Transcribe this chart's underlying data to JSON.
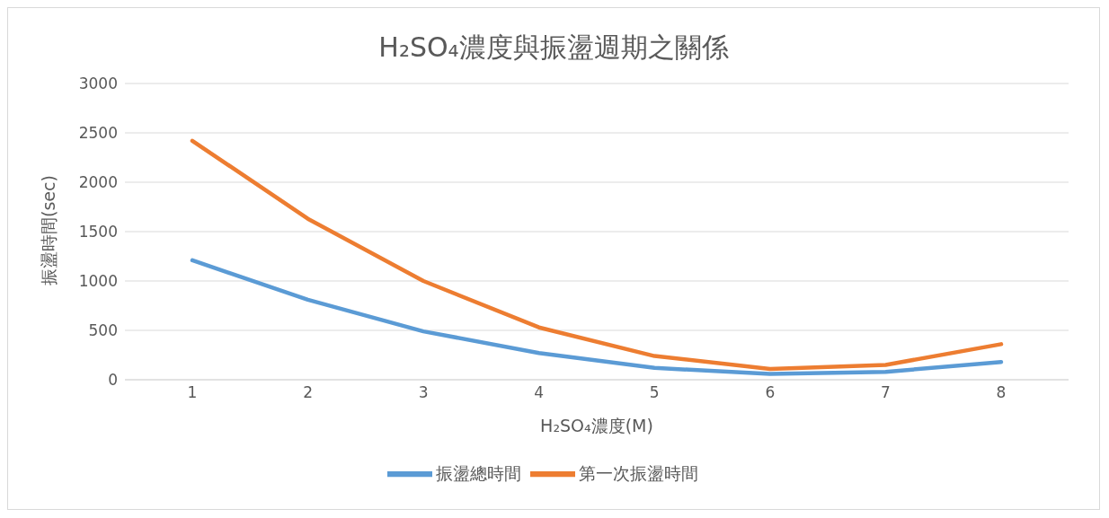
{
  "chart_data": {
    "type": "line",
    "title": "H₂SO₄濃度與振盪週期之關係",
    "xlabel": "H₂SO₄濃度(M)",
    "ylabel": "振盪時間(sec)",
    "categories": [
      "1",
      "2",
      "3",
      "4",
      "5",
      "6",
      "7",
      "8"
    ],
    "series": [
      {
        "name": "振盪總時間",
        "color": "#5b9bd5",
        "values": [
          1210,
          810,
          490,
          270,
          120,
          60,
          80,
          180
        ]
      },
      {
        "name": "第一次振盪時間",
        "color": "#ed7d31",
        "values": [
          2420,
          1630,
          1000,
          530,
          240,
          110,
          150,
          360
        ]
      }
    ],
    "ylim": [
      0,
      3000
    ],
    "yticks": [
      0,
      500,
      1000,
      1500,
      2000,
      2500,
      3000
    ],
    "grid": "y",
    "legend": "bottom",
    "marker": "none",
    "line_style": "solid"
  }
}
